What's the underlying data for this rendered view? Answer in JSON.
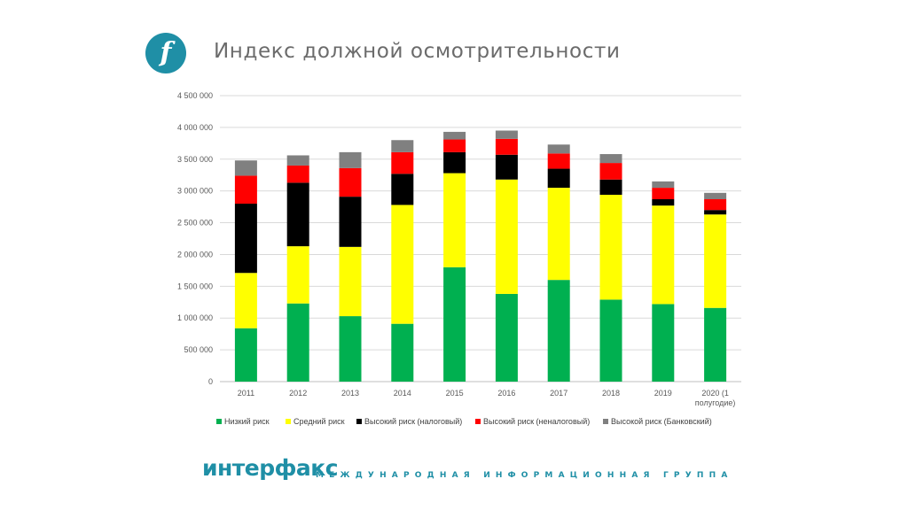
{
  "header": {
    "logo_glyph": "f",
    "title": "Индекс должной осмотрительности"
  },
  "footer": {
    "brand": "интерфакс",
    "tagline": "МЕЖДУНАРОДНАЯ ИНФОРМАЦИОННАЯ ГРУППА"
  },
  "colors": {
    "accent": "#1f8fa6"
  },
  "chart_data": {
    "type": "bar",
    "stacked": true,
    "title": "",
    "xlabel": "",
    "ylabel": "",
    "ylim": [
      0,
      4500000
    ],
    "yticks": [
      0,
      500000,
      1000000,
      1500000,
      2000000,
      2500000,
      3000000,
      3500000,
      4000000,
      4500000
    ],
    "ytick_labels": [
      "0",
      "500 000",
      "1 000 000",
      "1 500 000",
      "2 000 000",
      "2 500 000",
      "3 000 000",
      "3 500 000",
      "4 000 000",
      "4 500 000"
    ],
    "grid": true,
    "legend_position": "bottom",
    "categories": [
      "2011",
      "2012",
      "2013",
      "2014",
      "2015",
      "2016",
      "2017",
      "2018",
      "2019",
      "2020 (1 полугодие)"
    ],
    "series": [
      {
        "name": "Низкий риск",
        "color": "#00b050",
        "values": [
          840000,
          1230000,
          1030000,
          910000,
          1800000,
          1380000,
          1600000,
          1290000,
          1220000,
          1160000
        ]
      },
      {
        "name": "Средний риск",
        "color": "#ffff00",
        "values": [
          870000,
          900000,
          1090000,
          1870000,
          1480000,
          1800000,
          1450000,
          1650000,
          1550000,
          1470000
        ]
      },
      {
        "name": "Высокий риск (налоговый)",
        "color": "#000000",
        "values": [
          1090000,
          1000000,
          790000,
          490000,
          330000,
          390000,
          300000,
          240000,
          100000,
          70000
        ]
      },
      {
        "name": "Высокий риск (неналоговый)",
        "color": "#ff0000",
        "values": [
          440000,
          270000,
          450000,
          340000,
          200000,
          250000,
          240000,
          260000,
          180000,
          170000
        ]
      },
      {
        "name": "Высокой риск (Банковский)",
        "color": "#808080",
        "values": [
          240000,
          160000,
          250000,
          190000,
          120000,
          130000,
          140000,
          140000,
          100000,
          100000
        ]
      }
    ]
  }
}
